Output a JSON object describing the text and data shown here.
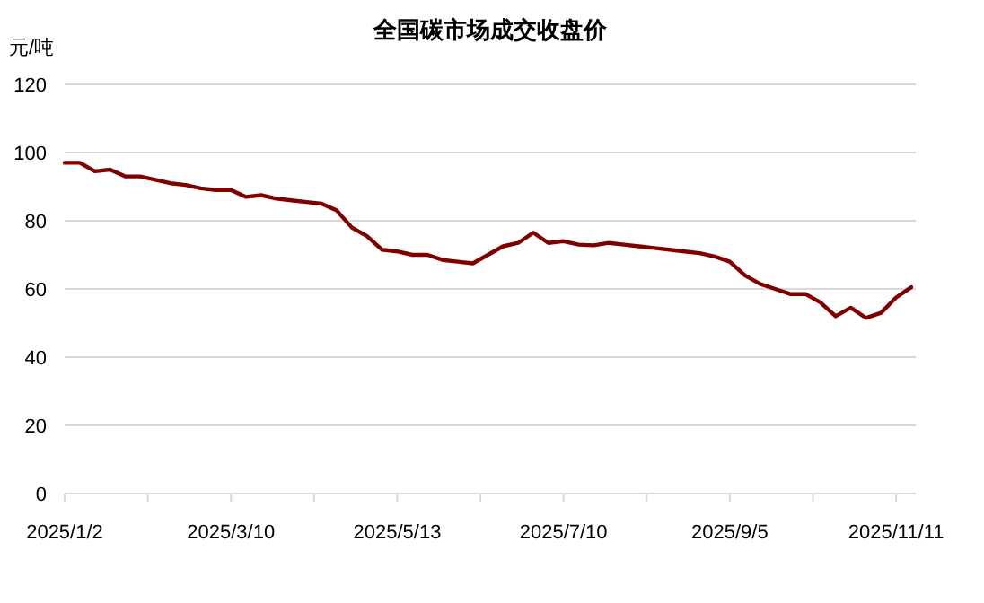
{
  "chart_data": {
    "type": "line",
    "title": "全国碳市场成交收盘价",
    "ylabel": "元/吨",
    "categories": [
      "2025/1/2",
      null,
      null,
      null,
      null,
      null,
      null,
      null,
      null,
      null,
      null,
      "2025/3/10",
      null,
      null,
      null,
      null,
      null,
      null,
      null,
      null,
      null,
      null,
      "2025/5/13",
      null,
      null,
      null,
      null,
      null,
      null,
      null,
      null,
      null,
      null,
      "2025/7/10",
      null,
      null,
      null,
      null,
      null,
      null,
      null,
      null,
      null,
      null,
      "2025/9/5",
      null,
      null,
      null,
      null,
      null,
      null,
      null,
      null,
      null,
      null,
      "2025/11/11",
      null
    ],
    "series": [
      {
        "color": "#800000",
        "values": [
          97,
          97,
          94.5,
          95,
          93,
          93,
          92,
          91,
          90.5,
          89.5,
          89,
          89,
          87,
          87.5,
          86.5,
          86,
          85.5,
          85,
          83,
          78,
          75.5,
          71.5,
          71,
          70,
          70,
          68.5,
          68,
          67.5,
          70,
          72.5,
          73.5,
          76.5,
          73.5,
          74,
          73,
          72.8,
          73.5,
          73,
          72.5,
          72,
          71.5,
          71,
          70.5,
          69.5,
          68,
          64,
          61.5,
          60,
          58.5,
          58.5,
          56,
          52,
          54.5,
          51.5,
          53,
          57.5,
          60.5
        ]
      }
    ],
    "ylim": [
      0,
      120
    ],
    "yticks": [
      0,
      20,
      40,
      60,
      80,
      100,
      120
    ],
    "grid": "y",
    "marker": "none",
    "line_style": "solid"
  }
}
